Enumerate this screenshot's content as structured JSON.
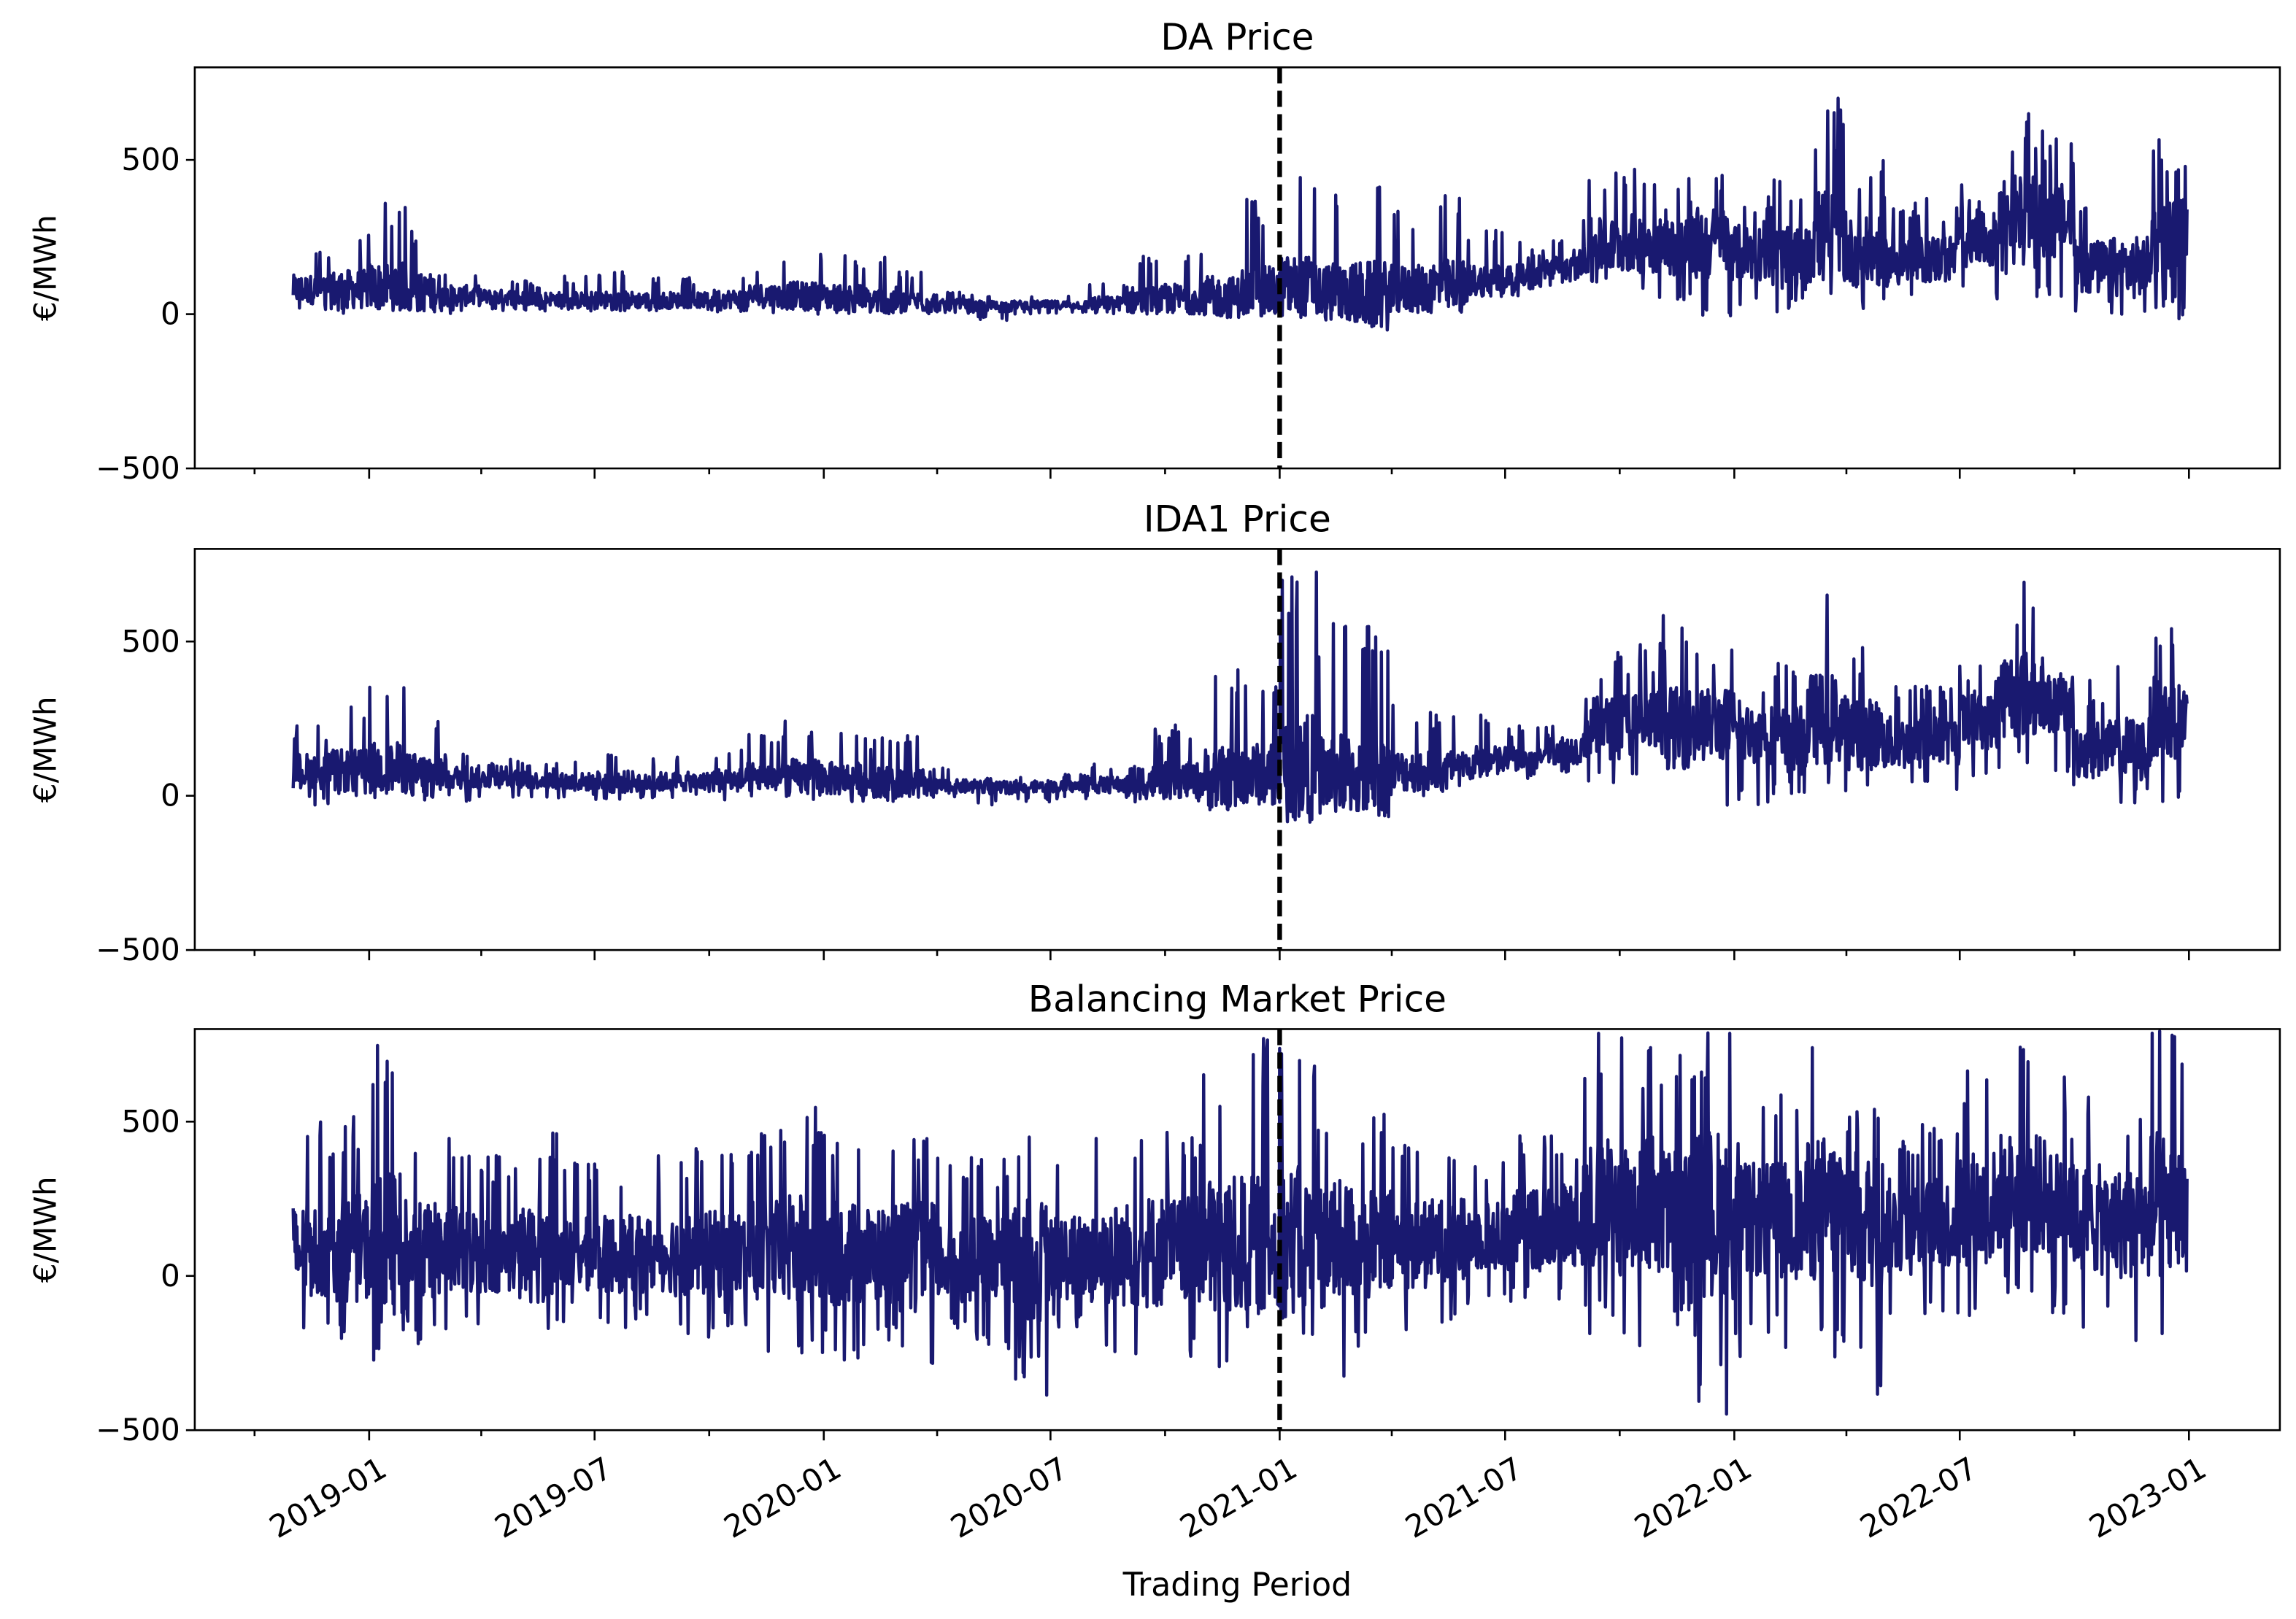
{
  "chart_data": [
    {
      "type": "line",
      "title": "DA Price",
      "ylabel": "€/MWh",
      "xlabel": "",
      "ylim": [
        -500,
        800
      ],
      "yticks": [
        "500",
        "0",
        "−500"
      ],
      "ytick_values": [
        500,
        0,
        -500
      ],
      "xlim": [
        "2018-08-14",
        "2023-03-15"
      ],
      "vline": {
        "x": "2021-01-01",
        "style": "dashed",
        "color": "#000000"
      },
      "color": "#191970",
      "monthly_envelope": {
        "months": [
          "2018-11",
          "2018-12",
          "2019-01",
          "2019-02",
          "2019-03",
          "2019-04",
          "2019-05",
          "2019-06",
          "2019-07",
          "2019-08",
          "2019-09",
          "2019-10",
          "2019-11",
          "2019-12",
          "2020-01",
          "2020-02",
          "2020-03",
          "2020-04",
          "2020-05",
          "2020-06",
          "2020-07",
          "2020-08",
          "2020-09",
          "2020-10",
          "2020-11",
          "2020-12",
          "2021-01",
          "2021-02",
          "2021-03",
          "2021-04",
          "2021-05",
          "2021-06",
          "2021-07",
          "2021-08",
          "2021-09",
          "2021-10",
          "2021-11",
          "2021-12",
          "2022-01",
          "2022-02",
          "2022-03",
          "2022-04",
          "2022-05",
          "2022-06",
          "2022-07",
          "2022-08",
          "2022-09",
          "2022-10",
          "2022-11",
          "2022-12"
        ],
        "low": [
          10,
          0,
          10,
          10,
          0,
          10,
          10,
          10,
          10,
          10,
          10,
          5,
          5,
          0,
          0,
          0,
          0,
          0,
          -20,
          0,
          0,
          0,
          0,
          0,
          -10,
          0,
          0,
          0,
          0,
          10,
          20,
          50,
          60,
          90,
          100,
          50,
          20,
          -10,
          0,
          0,
          0,
          0,
          20,
          30,
          50,
          100,
          50,
          0,
          0,
          -20
        ],
        "base": [
          80,
          80,
          90,
          70,
          60,
          55,
          50,
          45,
          45,
          45,
          45,
          50,
          60,
          60,
          55,
          45,
          40,
          30,
          25,
          30,
          30,
          35,
          45,
          50,
          55,
          70,
          90,
          70,
          60,
          80,
          90,
          110,
          120,
          150,
          220,
          230,
          220,
          230,
          200,
          180,
          250,
          200,
          170,
          180,
          240,
          330,
          300,
          150,
          150,
          250
        ],
        "high": [
          220,
          280,
          360,
          290,
          150,
          120,
          110,
          130,
          140,
          130,
          120,
          140,
          180,
          200,
          190,
          190,
          150,
          80,
          60,
          60,
          60,
          100,
          200,
          220,
          290,
          380,
          450,
          420,
          500,
          360,
          420,
          280,
          240,
          260,
          500,
          480,
          450,
          520,
          400,
          450,
          700,
          500,
          380,
          380,
          450,
          650,
          600,
          400,
          450,
          580
        ]
      }
    },
    {
      "type": "line",
      "title": "IDA1 Price",
      "ylabel": "€/MWh",
      "xlabel": "",
      "ylim": [
        -500,
        800
      ],
      "yticks": [
        "500",
        "0",
        "−500"
      ],
      "ytick_values": [
        500,
        0,
        -500
      ],
      "xlim": [
        "2018-08-14",
        "2023-03-15"
      ],
      "vline": {
        "x": "2021-01-01",
        "style": "dashed",
        "color": "#000000"
      },
      "color": "#191970",
      "monthly_envelope": {
        "months": [
          "2018-11",
          "2018-12",
          "2019-01",
          "2019-02",
          "2019-03",
          "2019-04",
          "2019-05",
          "2019-06",
          "2019-07",
          "2019-08",
          "2019-09",
          "2019-10",
          "2019-11",
          "2019-12",
          "2020-01",
          "2020-02",
          "2020-03",
          "2020-04",
          "2020-05",
          "2020-06",
          "2020-07",
          "2020-08",
          "2020-09",
          "2020-10",
          "2020-11",
          "2020-12",
          "2021-01",
          "2021-02",
          "2021-03",
          "2021-04",
          "2021-05",
          "2021-06",
          "2021-07",
          "2021-08",
          "2021-09",
          "2021-10",
          "2021-11",
          "2021-12",
          "2022-01",
          "2022-02",
          "2022-03",
          "2022-04",
          "2022-05",
          "2022-06",
          "2022-07",
          "2022-08",
          "2022-09",
          "2022-10",
          "2022-11",
          "2022-12"
        ],
        "low": [
          -30,
          -20,
          -10,
          -20,
          -20,
          -10,
          -10,
          -10,
          -20,
          -10,
          -10,
          -20,
          -20,
          -20,
          -20,
          -20,
          -10,
          -10,
          -30,
          -20,
          -10,
          -10,
          -30,
          -30,
          -40,
          -30,
          -30,
          -30,
          -10,
          0,
          10,
          40,
          50,
          70,
          40,
          20,
          0,
          -50,
          -30,
          -10,
          0,
          0,
          10,
          20,
          50,
          80,
          20,
          -40,
          -30,
          -40
        ],
        "base": [
          80,
          80,
          90,
          70,
          60,
          55,
          50,
          45,
          45,
          45,
          45,
          50,
          60,
          60,
          55,
          45,
          40,
          30,
          25,
          30,
          30,
          35,
          45,
          50,
          55,
          70,
          90,
          70,
          60,
          80,
          90,
          110,
          120,
          150,
          220,
          230,
          220,
          230,
          200,
          180,
          250,
          200,
          170,
          180,
          240,
          330,
          300,
          150,
          150,
          250
        ],
        "high": [
          230,
          290,
          360,
          280,
          150,
          120,
          110,
          120,
          140,
          130,
          130,
          150,
          200,
          250,
          220,
          200,
          200,
          90,
          60,
          60,
          70,
          110,
          220,
          230,
          420,
          420,
          750,
          560,
          560,
          300,
          280,
          270,
          230,
          280,
          490,
          520,
          590,
          480,
          400,
          480,
          660,
          520,
          400,
          370,
          450,
          720,
          450,
          380,
          450,
          560
        ]
      }
    },
    {
      "type": "line",
      "title": "Balancing Market Price",
      "ylabel": "€/MWh",
      "xlabel": "Trading Period",
      "ylim": [
        -500,
        800
      ],
      "yticks": [
        "500",
        "0",
        "−500"
      ],
      "ytick_values": [
        500,
        0,
        -500
      ],
      "xlim": [
        "2018-08-14",
        "2023-03-15"
      ],
      "xticks": [
        "2019-01",
        "2019-07",
        "2020-01",
        "2020-07",
        "2021-01",
        "2021-07",
        "2022-01",
        "2022-07",
        "2023-01"
      ],
      "vline": {
        "x": "2021-01-01",
        "style": "dashed",
        "color": "#000000"
      },
      "color": "#191970",
      "monthly_envelope": {
        "months": [
          "2018-11",
          "2018-12",
          "2019-01",
          "2019-02",
          "2019-03",
          "2019-04",
          "2019-05",
          "2019-06",
          "2019-07",
          "2019-08",
          "2019-09",
          "2019-10",
          "2019-11",
          "2019-12",
          "2020-01",
          "2020-02",
          "2020-03",
          "2020-04",
          "2020-05",
          "2020-06",
          "2020-07",
          "2020-08",
          "2020-09",
          "2020-10",
          "2020-11",
          "2020-12",
          "2021-01",
          "2021-02",
          "2021-03",
          "2021-04",
          "2021-05",
          "2021-06",
          "2021-07",
          "2021-08",
          "2021-09",
          "2021-10",
          "2021-11",
          "2021-12",
          "2022-01",
          "2022-02",
          "2022-03",
          "2022-04",
          "2022-05",
          "2022-06",
          "2022-07",
          "2022-08",
          "2022-09",
          "2022-10",
          "2022-11",
          "2022-12"
        ],
        "low": [
          -180,
          -250,
          -280,
          -220,
          -200,
          -160,
          -220,
          -150,
          -180,
          -150,
          -200,
          -180,
          -250,
          -270,
          -280,
          -250,
          -330,
          -200,
          -250,
          -390,
          -200,
          -280,
          -330,
          -300,
          -340,
          -200,
          -300,
          -330,
          -250,
          -200,
          -150,
          -100,
          -100,
          -120,
          -200,
          -250,
          -200,
          -450,
          -280,
          -250,
          -300,
          -400,
          -200,
          -150,
          -150,
          -100,
          -150,
          -200,
          -250,
          -320
        ],
        "base": [
          80,
          90,
          90,
          80,
          80,
          70,
          70,
          70,
          70,
          70,
          70,
          70,
          80,
          80,
          70,
          70,
          60,
          50,
          50,
          50,
          60,
          70,
          80,
          80,
          90,
          100,
          110,
          100,
          100,
          100,
          110,
          130,
          150,
          170,
          220,
          230,
          200,
          200,
          180,
          180,
          220,
          180,
          160,
          170,
          220,
          270,
          260,
          180,
          170,
          220
        ],
        "high": [
          500,
          520,
          800,
          480,
          450,
          400,
          480,
          380,
          380,
          400,
          420,
          450,
          480,
          550,
          480,
          450,
          480,
          400,
          380,
          500,
          420,
          480,
          500,
          480,
          700,
          800,
          800,
          600,
          560,
          450,
          480,
          400,
          500,
          500,
          800,
          800,
          800,
          800,
          550,
          600,
          760,
          600,
          500,
          500,
          700,
          780,
          700,
          600,
          560,
          800
        ]
      }
    }
  ]
}
